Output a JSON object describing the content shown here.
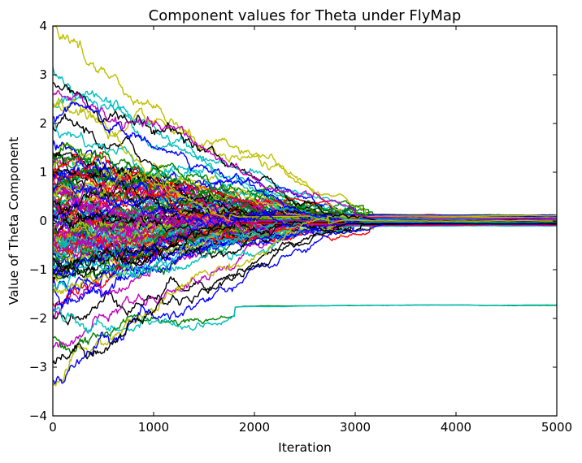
{
  "chart_data": {
    "type": "line",
    "title": "Component values for Theta under FlyMap",
    "xlabel": "Iteration",
    "ylabel": "Value of Theta Component",
    "xlim": [
      0,
      5000
    ],
    "ylim": [
      -4,
      4
    ],
    "x_ticks": [
      0,
      1000,
      2000,
      3000,
      4000,
      5000
    ],
    "y_ticks": [
      4,
      3,
      2,
      1,
      0,
      -1,
      -2,
      -3,
      -4
    ],
    "grid": false,
    "legend": "none",
    "series_colors": [
      "#0000ff",
      "#008000",
      "#ff0000",
      "#00bfbf",
      "#bf00bf",
      "#bfbf00",
      "#000000"
    ],
    "series_count": 120,
    "converged_value_main": 0.0,
    "converged_spread": [
      -0.1,
      0.12
    ],
    "outlier_converged_value": -1.73,
    "highlighted_traces": [
      {
        "color": "#bfbf00",
        "start": 4.0,
        "end": 0.0
      },
      {
        "color": "#00bfbf",
        "start": 3.1,
        "end": 0.05
      },
      {
        "color": "#000000",
        "start": 2.9,
        "end": 0.0
      },
      {
        "color": "#bf00bf",
        "start": 2.6,
        "end": 0.05
      },
      {
        "color": "#0000ff",
        "start": 2.2,
        "end": 0.0
      },
      {
        "color": "#008000",
        "start": -2.4,
        "end": -1.73
      },
      {
        "color": "#00bfbf",
        "start": -1.9,
        "end": -1.73
      },
      {
        "color": "#bfbf00",
        "start": -3.4,
        "end": 0.0
      },
      {
        "color": "#0000ff",
        "start": -3.3,
        "end": -0.05
      },
      {
        "color": "#000000",
        "start": -2.9,
        "end": -0.05
      }
    ]
  }
}
